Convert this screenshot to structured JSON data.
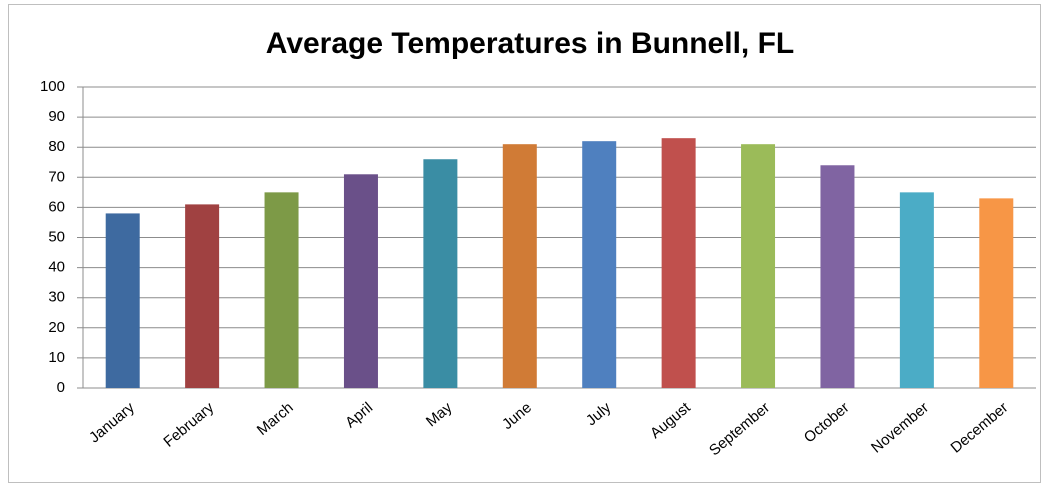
{
  "chart_data": {
    "type": "bar",
    "title": "Average Temperatures in Bunnell, FL",
    "categories": [
      "January",
      "February",
      "March",
      "April",
      "May",
      "June",
      "July",
      "August",
      "September",
      "October",
      "November",
      "December"
    ],
    "values": [
      58,
      61,
      65,
      71,
      76,
      81,
      82,
      83,
      81,
      74,
      65,
      63
    ],
    "colors": [
      "#3e6aa0",
      "#a04141",
      "#7d9a47",
      "#6a5089",
      "#3a8da4",
      "#d07b36",
      "#4f80bf",
      "#c0504d",
      "#9bbb59",
      "#8064a2",
      "#4bacc6",
      "#f79646"
    ],
    "ylim": [
      0,
      100
    ],
    "yticks": [
      0,
      10,
      20,
      30,
      40,
      50,
      60,
      70,
      80,
      90,
      100
    ],
    "grid": true
  }
}
